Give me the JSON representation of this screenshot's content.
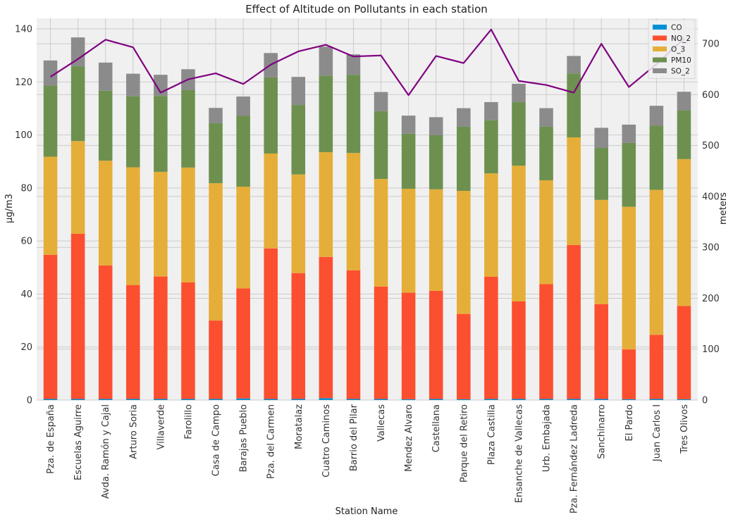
{
  "chart_data": {
    "type": "bar",
    "stacked": true,
    "title": "Effect of Altitude on Pollutants in each station",
    "xlabel": "Station Name",
    "ylabel": "μg/m3",
    "ylabel_right": "meters",
    "ylim": [
      0,
      144
    ],
    "ylim_right": [
      0,
      750
    ],
    "yticks": [
      0,
      20,
      40,
      60,
      80,
      100,
      120,
      140
    ],
    "yticks_right": [
      0,
      100,
      200,
      300,
      400,
      500,
      600,
      700
    ],
    "grid": true,
    "legend_position": "top-right",
    "categories": [
      "Pza. de España",
      "Escuelas Aguirre",
      "Avda. Ramón y Cajal",
      "Arturo Soria",
      "Villaverde",
      "Farolillo",
      "Casa de Campo",
      "Barajas Pueblo",
      "Pza. del Carmen",
      "Moratalaz",
      "Cuatro Caminos",
      "Barrio del Pilar",
      "Vallecas",
      "Mendez Alvaro",
      "Castellana",
      "Parque del Retiro",
      "Plaza Castilla",
      "Ensanche de Vallecas",
      "Urb. Embajada",
      "Pza. Fernández Ladreda",
      "Sanchinarro",
      "El Pardo",
      "Juan Carlos I",
      "Tres Olivos"
    ],
    "series": [
      {
        "name": "CO",
        "color": "#008fd5",
        "values": [
          0.4,
          0.4,
          0.4,
          0.4,
          0.4,
          0.4,
          0.4,
          0.6,
          0.4,
          0.4,
          0.7,
          0.4,
          0.4,
          0.3,
          0.4,
          0.3,
          0.4,
          0.4,
          0.4,
          0.4,
          0.4,
          0.3,
          0.4,
          0.3
        ]
      },
      {
        "name": "NO_2",
        "color": "#fc4f30",
        "values": [
          54.4,
          62.3,
          50.4,
          43.0,
          46.2,
          44.0,
          29.6,
          41.5,
          56.8,
          47.5,
          53.3,
          48.5,
          42.4,
          40.2,
          40.8,
          32.2,
          46.1,
          36.8,
          43.3,
          58.1,
          35.8,
          18.8,
          24.2,
          35.2
        ]
      },
      {
        "name": "O_3",
        "color": "#e5ae38",
        "values": [
          37.0,
          35.0,
          39.5,
          44.4,
          39.5,
          43.3,
          51.8,
          38.4,
          35.8,
          37.2,
          39.5,
          44.3,
          40.6,
          39.2,
          38.3,
          46.4,
          39.0,
          51.2,
          39.2,
          40.6,
          39.3,
          53.8,
          54.7,
          55.4
        ]
      },
      {
        "name": "PM10",
        "color": "#6d904f",
        "values": [
          26.7,
          28.2,
          26.4,
          26.8,
          28.6,
          29.2,
          22.6,
          26.7,
          28.7,
          26.2,
          28.9,
          29.5,
          25.6,
          20.8,
          20.4,
          24.2,
          20.0,
          24.0,
          20.2,
          24.1,
          19.6,
          24.1,
          24.2,
          18.4
        ]
      },
      {
        "name": "SO_2",
        "color": "#8b8b8b",
        "values": [
          9.6,
          10.9,
          10.6,
          8.5,
          8.0,
          7.9,
          5.8,
          7.3,
          9.2,
          10.6,
          10.9,
          7.7,
          7.2,
          6.8,
          6.8,
          7.0,
          6.9,
          6.9,
          7.0,
          6.6,
          7.6,
          6.9,
          7.5,
          7.0
        ]
      }
    ],
    "line_series": {
      "name": "altitude",
      "axis": "right",
      "color": "#800080",
      "values": [
        635,
        670,
        708,
        693,
        604,
        630,
        642,
        621,
        659,
        685,
        698,
        675,
        677,
        599,
        676,
        662,
        728,
        627,
        619,
        604,
        700,
        615,
        660,
        710
      ]
    }
  }
}
